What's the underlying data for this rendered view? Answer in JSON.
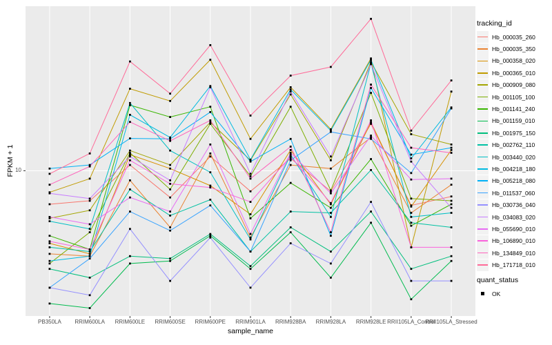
{
  "chart_data": {
    "type": "line",
    "title": "",
    "xlabel": "sample_name",
    "ylabel": "FPKM + 1",
    "y_scale": "log10",
    "y_tick_label": "10",
    "y_tick_value": 10,
    "ylim": [
      1.45,
      90
    ],
    "grid": "major-white-on-grey",
    "panel_bg": "#EBEBEB",
    "grid_color": "#FFFFFF",
    "tick_color": "#333333",
    "tick_label_color": "#4D4D4D",
    "point_color": "#000000",
    "point_shape": "square",
    "categories": [
      "PB350LA",
      "RRIM600LA",
      "RRIM600LE",
      "RRIM600SE",
      "RRIM600PE",
      "RRIM901LA",
      "RRIM928BA",
      "RRIM928LA",
      "RRIM928LE",
      "RRII105LA_Control",
      "RRII105LA_Stressed"
    ],
    "legend": {
      "title": "tracking_id",
      "position": "right"
    },
    "quant_legend": {
      "title": "quant_status",
      "items": [
        "OK"
      ]
    },
    "series": [
      {
        "name": "Hb_000035_260",
        "color": "#F8766D",
        "values": [
          6.4,
          6.7,
          10.8,
          7.0,
          12.1,
          7.6,
          11.8,
          7.6,
          18.7,
          6.3,
          7.1
        ]
      },
      {
        "name": "Hb_000035_350",
        "color": "#EA8331",
        "values": [
          3.3,
          3.2,
          8.8,
          4.7,
          12.6,
          4.1,
          10.8,
          10.3,
          15.6,
          5.7,
          8.3
        ]
      },
      {
        "name": "Hb_000358_020",
        "color": "#D89000",
        "values": [
          3.8,
          3.3,
          12.4,
          10.3,
          8.2,
          5.6,
          13.2,
          6.4,
          19.1,
          6.2,
          13.2
        ]
      },
      {
        "name": "Hb_000365_010",
        "color": "#C09B00",
        "values": [
          7.5,
          9.0,
          29.9,
          25.4,
          44.0,
          15.3,
          30.5,
          17.4,
          44.8,
          3.6,
          28.8
        ]
      },
      {
        "name": "Hb_000909_080",
        "color": "#A3A500",
        "values": [
          5.3,
          5.9,
          13.1,
          10.8,
          19.1,
          11.5,
          27.7,
          11.5,
          42.8,
          16.3,
          14.2
        ]
      },
      {
        "name": "Hb_001105_100",
        "color": "#7CAE00",
        "values": [
          2.9,
          4.4,
          12.7,
          7.8,
          18.7,
          9.3,
          23.5,
          7.7,
          28.3,
          6.9,
          6.7
        ]
      },
      {
        "name": "Hb_001141_240",
        "color": "#39B600",
        "values": [
          4.2,
          3.5,
          24.0,
          20.5,
          23.5,
          5.3,
          8.5,
          6.1,
          11.7,
          4.8,
          6.4
        ]
      },
      {
        "name": "Hb_001159_010",
        "color": "#00BB4E",
        "values": [
          1.7,
          1.6,
          2.9,
          3.0,
          4.2,
          2.7,
          4.4,
          2.4,
          5.0,
          1.8,
          3.0
        ]
      },
      {
        "name": "Hb_001975_150",
        "color": "#00BF7D",
        "values": [
          2.7,
          2.4,
          3.2,
          3.1,
          4.3,
          2.8,
          4.7,
          3.4,
          5.8,
          2.7,
          3.2
        ]
      },
      {
        "name": "Hb_002762_110",
        "color": "#00C1A3",
        "values": [
          3.6,
          3.4,
          7.8,
          5.5,
          6.8,
          3.4,
          5.8,
          5.7,
          10.1,
          5.0,
          4.7
        ]
      },
      {
        "name": "Hb_003440_020",
        "color": "#00BFC4",
        "values": [
          5.1,
          4.6,
          24.7,
          13.1,
          9.8,
          4.0,
          12.4,
          5.4,
          42.0,
          5.4,
          5.7
        ]
      },
      {
        "name": "Hb_004218_180",
        "color": "#00BAE0",
        "values": [
          3.0,
          3.2,
          21.1,
          15.6,
          31.0,
          11.6,
          29.6,
          17.1,
          44.0,
          11.8,
          23.3
        ]
      },
      {
        "name": "Hb_005218_080",
        "color": "#00B0F6",
        "values": [
          10.3,
          10.8,
          15.4,
          15.3,
          21.9,
          11.3,
          15.3,
          4.2,
          30.2,
          12.4,
          13.6
        ]
      },
      {
        "name": "Hb_011537_060",
        "color": "#35A2FF",
        "values": [
          2.1,
          3.1,
          5.8,
          4.5,
          6.3,
          3.4,
          11.5,
          16.8,
          15.3,
          9.7,
          23.0
        ]
      },
      {
        "name": "Hb_030736_040",
        "color": "#9590FF",
        "values": [
          2.1,
          1.9,
          4.6,
          2.3,
          4.1,
          2.1,
          3.8,
          2.9,
          6.6,
          2.3,
          2.3
        ]
      },
      {
        "name": "Hb_034083_020",
        "color": "#C77CFF",
        "values": [
          7.4,
          6.9,
          12.1,
          8.8,
          30.5,
          9.6,
          28.8,
          12.1,
          41.5,
          11.3,
          6.1
        ]
      },
      {
        "name": "Hb_055690_010",
        "color": "#E76BF3",
        "values": [
          5.4,
          4.9,
          7.0,
          5.8,
          14.2,
          4.3,
          12.7,
          7.4,
          16.0,
          8.9,
          9.0
        ]
      },
      {
        "name": "Hb_106890_010",
        "color": "#FA62DB",
        "values": [
          3.9,
          3.5,
          11.5,
          8.4,
          8.0,
          6.6,
          12.1,
          6.5,
          19.6,
          3.6,
          3.6
        ]
      },
      {
        "name": "Hb_134849_010",
        "color": "#FF62BC",
        "values": [
          8.3,
          10.6,
          19.2,
          14.9,
          19.6,
          9.0,
          13.8,
          4.4,
          31.6,
          13.6,
          12.7
        ]
      },
      {
        "name": "Hb_171718_010",
        "color": "#FF6A98",
        "values": [
          9.6,
          12.6,
          43.0,
          28.0,
          53.5,
          20.9,
          35.6,
          40.0,
          76.0,
          17.1,
          33.4
        ]
      }
    ]
  }
}
